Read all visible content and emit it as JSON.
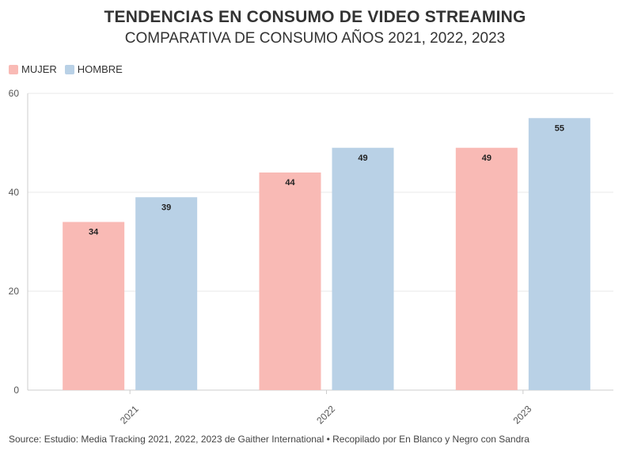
{
  "title": "TENDENCIAS EN CONSUMO DE VIDEO STREAMING",
  "subtitle": "COMPARATIVA DE CONSUMO AÑOS 2021, 2022, 2023",
  "source": "Source: Estudio: Media Tracking 2021, 2022, 2023 de Gaither International • Recopilado por En Blanco y Negro con Sandra",
  "colors": {
    "mujer": "#f9bab5",
    "hombre": "#b9d1e6",
    "grid": "#e9e9e9",
    "axis": "#cccccc",
    "text": "#333333"
  },
  "chart_data": {
    "type": "bar",
    "title": "TENDENCIAS EN CONSUMO DE VIDEO STREAMING",
    "subtitle": "COMPARATIVA DE CONSUMO AÑOS 2021, 2022, 2023",
    "categories": [
      "2021",
      "2022",
      "2023"
    ],
    "series": [
      {
        "name": "MUJER",
        "values": [
          34,
          44,
          49
        ],
        "color": "#f9bab5"
      },
      {
        "name": "HOMBRE",
        "values": [
          39,
          49,
          55
        ],
        "color": "#b9d1e6"
      }
    ],
    "ylim": [
      0,
      60
    ],
    "yticks": [
      0,
      20,
      40,
      60
    ],
    "xlabel": "",
    "ylabel": "",
    "grid": true,
    "legend": "top-left",
    "data_labels": true
  }
}
